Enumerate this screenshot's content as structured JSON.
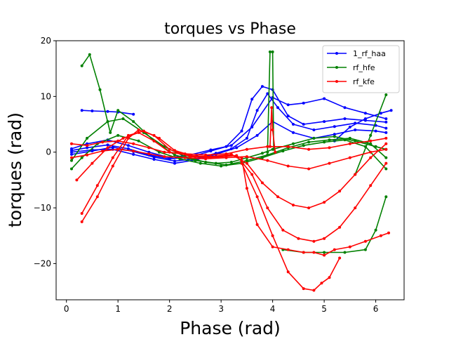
{
  "chart_data": {
    "type": "line",
    "title": "torques vs Phase",
    "xlabel": "Phase (rad)",
    "ylabel": "torques (rad)",
    "xlim": [
      -0.2,
      6.55
    ],
    "ylim": [
      -26.5,
      20
    ],
    "xticks": [
      0,
      1,
      2,
      3,
      4,
      5,
      6
    ],
    "yticks": [
      -20,
      -10,
      0,
      10,
      20
    ],
    "xtick_labels": [
      "0",
      "1",
      "2",
      "3",
      "4",
      "5",
      "6"
    ],
    "ytick_labels": [
      "−20",
      "−10",
      "0",
      "10",
      "20"
    ],
    "grid": false,
    "legend_position": "top-right",
    "series": [
      {
        "name": "1_rf_haa",
        "color": "#0000ff",
        "traces": [
          {
            "x": [
              0.1,
              0.4,
              0.8,
              1.2,
              1.6,
              2.0,
              2.4,
              2.8,
              3.1,
              3.4,
              3.6,
              3.8,
              4.0,
              4.3,
              4.6,
              5.0,
              5.4,
              5.8,
              6.2
            ],
            "y": [
              0.3,
              0.8,
              1.3,
              0.6,
              -0.5,
              -1.2,
              -0.9,
              0.2,
              1.0,
              3.8,
              9.5,
              11.8,
              11.2,
              6.5,
              5.0,
              5.5,
              6.0,
              5.7,
              5.4
            ]
          },
          {
            "x": [
              0.1,
              0.5,
              0.9,
              1.3,
              1.7,
              2.1,
              2.5,
              2.9,
              3.2,
              3.5,
              3.7,
              3.9,
              4.1,
              4.4,
              4.8,
              5.2,
              5.6,
              6.0,
              6.2
            ],
            "y": [
              -0.4,
              0.2,
              0.9,
              0.1,
              -0.9,
              -1.6,
              -1.2,
              -0.2,
              0.6,
              2.5,
              7.5,
              10.5,
              8.0,
              5.0,
              4.0,
              4.6,
              5.2,
              4.8,
              4.3
            ]
          },
          {
            "x": [
              0.1,
              0.4,
              0.8,
              1.2,
              1.6,
              2.0,
              2.4,
              2.8,
              3.2,
              3.6,
              4.0,
              4.3,
              4.6,
              5.0,
              5.4,
              5.8,
              6.2
            ],
            "y": [
              0.6,
              1.5,
              2.2,
              1.2,
              0.0,
              -1.0,
              -0.5,
              0.4,
              1.2,
              4.5,
              9.8,
              8.5,
              8.8,
              9.6,
              8.0,
              7.0,
              6.0
            ]
          },
          {
            "x": [
              0.1,
              0.5,
              0.9,
              1.3,
              1.7,
              2.1,
              2.5,
              2.9,
              3.3,
              3.7,
              4.0,
              4.4,
              4.8,
              5.2,
              5.6,
              6.0,
              6.2
            ],
            "y": [
              0.0,
              0.4,
              0.5,
              -0.4,
              -1.3,
              -2.0,
              -1.4,
              -0.4,
              0.8,
              3.0,
              5.5,
              3.5,
              2.5,
              3.2,
              4.0,
              3.8,
              3.5
            ]
          },
          {
            "x": [
              0.3,
              0.5,
              0.8,
              1.0,
              1.3
            ],
            "y": [
              7.5,
              7.4,
              7.3,
              7.2,
              6.8
            ]
          },
          {
            "x": [
              5.2,
              5.5,
              5.8,
              6.1,
              6.3
            ],
            "y": [
              2.0,
              4.5,
              6.0,
              7.0,
              7.5
            ]
          }
        ]
      },
      {
        "name": "rf_hfe",
        "color": "#008000",
        "traces": [
          {
            "x": [
              0.3,
              0.45,
              0.65,
              0.85,
              1.0,
              1.3,
              1.7,
              2.1,
              2.5,
              2.9,
              3.2,
              3.5,
              3.8,
              4.0,
              4.4,
              4.8,
              5.2,
              5.6,
              6.0,
              6.2
            ],
            "y": [
              15.5,
              17.5,
              11.2,
              3.5,
              7.5,
              5.5,
              2.0,
              -0.5,
              -1.5,
              -2.0,
              -1.8,
              -1.0,
              -0.2,
              0.5,
              1.5,
              2.5,
              2.8,
              2.0,
              1.0,
              0.5
            ]
          },
          {
            "x": [
              0.1,
              0.4,
              0.8,
              1.1,
              1.5,
              1.9,
              2.3,
              2.7,
              3.1,
              3.5,
              3.9,
              4.3,
              4.7,
              5.1,
              5.5,
              5.9,
              6.2
            ],
            "y": [
              -1.5,
              2.5,
              5.5,
              6.0,
              3.5,
              1.0,
              -0.8,
              -1.8,
              -2.3,
              -1.5,
              -0.5,
              0.8,
              1.8,
              2.2,
              2.5,
              1.5,
              -1.0
            ]
          },
          {
            "x": [
              0.1,
              0.3,
              0.6,
              1.0,
              1.4,
              1.8,
              2.2,
              2.6,
              3.0,
              3.4,
              3.8,
              4.2,
              4.6,
              5.0,
              5.4,
              5.8,
              6.2
            ],
            "y": [
              -3.0,
              -1.0,
              1.5,
              3.0,
              2.0,
              0.0,
              -1.2,
              -2.0,
              -2.5,
              -2.0,
              -1.0,
              0.2,
              1.2,
              1.8,
              2.2,
              1.0,
              -3.0
            ]
          },
          {
            "x": [
              3.9,
              3.95,
              4.0,
              4.02
            ],
            "y": [
              0.0,
              18.0,
              18.0,
              0.5
            ]
          },
          {
            "x": [
              4.2,
              4.6,
              5.0,
              5.4,
              5.8,
              6.0,
              6.2
            ],
            "y": [
              -17.5,
              -18.0,
              -18.0,
              -18.0,
              -17.5,
              -14.0,
              -8.0
            ]
          },
          {
            "x": [
              5.6,
              5.9,
              6.2
            ],
            "y": [
              -4.0,
              3.0,
              10.3
            ]
          }
        ]
      },
      {
        "name": "rf_kfe",
        "color": "#ff0000",
        "traces": [
          {
            "x": [
              0.3,
              0.6,
              0.9,
              1.2,
              1.4,
              1.7,
              2.0,
              2.4,
              2.8,
              3.2,
              3.4,
              3.5,
              3.7,
              4.0,
              4.3,
              4.6,
              4.8,
              5.0,
              5.2,
              5.5,
              5.8,
              6.1,
              6.25
            ],
            "y": [
              -12.5,
              -8.0,
              -2.5,
              2.5,
              4.0,
              3.0,
              0.5,
              -0.8,
              -1.0,
              -0.5,
              -1.0,
              -6.5,
              -13.0,
              -17.0,
              -17.5,
              -18.0,
              -18.0,
              -18.5,
              -17.5,
              -17.0,
              -16.0,
              -15.0,
              -14.5
            ]
          },
          {
            "x": [
              0.3,
              0.6,
              0.9,
              1.2,
              1.5,
              1.8,
              2.1,
              2.5,
              2.9,
              3.3,
              3.6,
              3.9,
              4.2,
              4.5,
              4.8,
              5.0,
              5.3,
              5.6,
              5.9,
              6.2
            ],
            "y": [
              -11.0,
              -6.0,
              -1.0,
              3.0,
              3.8,
              2.5,
              0.3,
              -0.8,
              -0.9,
              -0.6,
              -4.0,
              -10.0,
              -14.0,
              -15.5,
              -16.0,
              -15.5,
              -13.5,
              -10.0,
              -6.0,
              -2.0
            ]
          },
          {
            "x": [
              0.2,
              0.5,
              0.8,
              1.1,
              1.4,
              1.7,
              2.0,
              2.4,
              2.8,
              3.2,
              3.5,
              3.8,
              4.1,
              4.4,
              4.7,
              5.0,
              5.3,
              5.6,
              5.9,
              6.2
            ],
            "y": [
              -5.0,
              -2.0,
              0.8,
              2.5,
              3.5,
              2.0,
              0.0,
              -0.6,
              -0.8,
              -0.4,
              -2.0,
              -5.5,
              -8.0,
              -9.5,
              -10.0,
              -9.0,
              -7.0,
              -4.0,
              -1.0,
              1.5
            ]
          },
          {
            "x": [
              3.4,
              3.7,
              4.0,
              4.3,
              4.6,
              4.8,
              4.95,
              5.1,
              5.3
            ],
            "y": [
              -2.0,
              -8.0,
              -15.0,
              -21.5,
              -24.5,
              -24.8,
              -23.5,
              -22.5,
              -19.0
            ]
          },
          {
            "x": [
              0.1,
              0.4,
              0.7,
              1.0,
              1.3,
              1.6,
              1.9,
              2.3,
              2.7,
              3.1,
              3.5,
              3.9,
              4.3,
              4.7,
              5.1,
              5.5,
              5.9,
              6.2
            ],
            "y": [
              1.5,
              1.2,
              1.8,
              2.0,
              1.5,
              0.8,
              0.0,
              -0.3,
              -0.5,
              -0.3,
              0.5,
              1.0,
              1.0,
              0.5,
              0.8,
              1.5,
              2.0,
              2.5
            ]
          },
          {
            "x": [
              0.1,
              0.4,
              0.7,
              1.0,
              1.3,
              1.6,
              1.9,
              2.3,
              2.7,
              3.1,
              3.5,
              3.9,
              4.3,
              4.7,
              5.1,
              5.5,
              5.9,
              6.2
            ],
            "y": [
              -1.0,
              -0.5,
              0.2,
              0.5,
              0.2,
              -0.3,
              -0.8,
              -1.0,
              -1.2,
              -1.0,
              -0.8,
              -1.5,
              -2.5,
              -3.0,
              -2.0,
              -1.0,
              0.0,
              0.5
            ]
          },
          {
            "x": [
              3.95,
              3.98,
              4.0,
              4.05
            ],
            "y": [
              1.0,
              8.0,
              4.0,
              0.0
            ]
          }
        ]
      }
    ]
  }
}
